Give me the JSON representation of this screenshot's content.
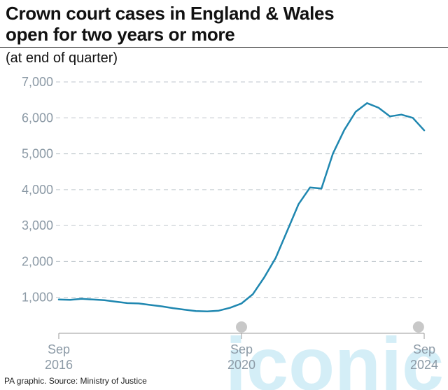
{
  "header": {
    "title_line1": "Crown court cases in England & Wales",
    "title_line2": "open for two years or more",
    "subtitle": "(at end of quarter)"
  },
  "footer": {
    "source": "PA graphic. Source: Ministry of Justice"
  },
  "watermark": {
    "text": "iconic"
  },
  "colors": {
    "line": "#1f87b0",
    "grid": "#bfc6cc",
    "tick": "#8c9aa6",
    "axis": "#999999",
    "marker": "#c8c8c8",
    "watermark": "#d4eef7"
  },
  "chart_data": {
    "type": "line",
    "title": "Crown court cases in England & Wales open for two years or more",
    "subtitle": "(at end of quarter)",
    "ylim": [
      0,
      7000
    ],
    "yticks": [
      1000,
      2000,
      3000,
      4000,
      5000,
      6000,
      7000
    ],
    "ytick_labels": [
      "1,000",
      "2,000",
      "3,000",
      "4,000",
      "5,000",
      "6,000",
      "7,000"
    ],
    "xtick_labels": [
      {
        "month": "Sep",
        "year": "2016"
      },
      {
        "month": "Sep",
        "year": "2020"
      },
      {
        "month": "Sep",
        "year": "2024"
      }
    ],
    "x_start": "Sep 2016",
    "x_end": "Sep 2024",
    "grid": true,
    "series": [
      {
        "values": [
          940,
          930,
          960,
          940,
          920,
          880,
          840,
          830,
          790,
          750,
          700,
          660,
          620,
          610,
          630,
          710,
          830,
          1090,
          1560,
          2100,
          2850,
          3600,
          4060,
          4030,
          5000,
          5660,
          6170,
          6410,
          6280,
          6040,
          6090,
          6000,
          5650
        ]
      }
    ],
    "markers": [
      "Sep 2020",
      "Sep 2024"
    ]
  }
}
